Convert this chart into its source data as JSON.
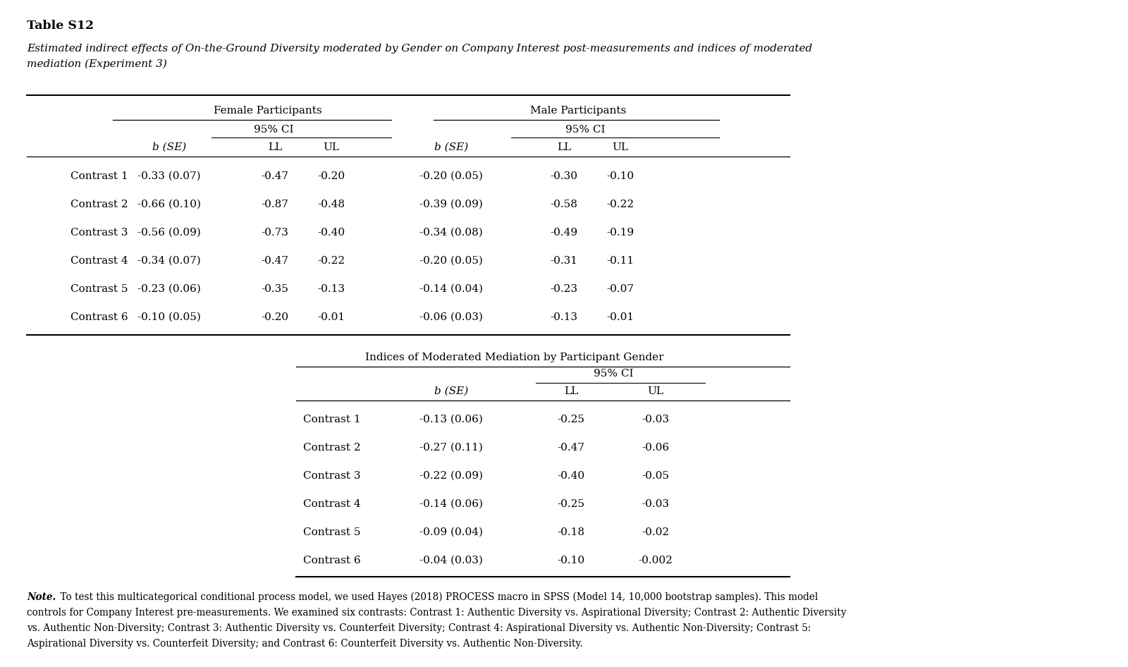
{
  "title": "Table S12",
  "subtitle_line1": "Estimated indirect effects of On-the-Ground Diversity moderated by Gender on Company Interest post-measurements and indices of moderated",
  "subtitle_line2": "mediation (Experiment 3)",
  "female_header": "Female Participants",
  "male_header": "Male Participants",
  "ci_header": "95% CI",
  "contrasts": [
    "Contrast 1",
    "Contrast 2",
    "Contrast 3",
    "Contrast 4",
    "Contrast 5",
    "Contrast 6"
  ],
  "female_data": [
    [
      "-0.33 (0.07)",
      "-0.47",
      "-0.20"
    ],
    [
      "-0.66 (0.10)",
      "-0.87",
      "-0.48"
    ],
    [
      "-0.56 (0.09)",
      "-0.73",
      "-0.40"
    ],
    [
      "-0.34 (0.07)",
      "-0.47",
      "-0.22"
    ],
    [
      "-0.23 (0.06)",
      "-0.35",
      "-0.13"
    ],
    [
      "-0.10 (0.05)",
      "-0.20",
      "-0.01"
    ]
  ],
  "male_data": [
    [
      "-0.20 (0.05)",
      "-0.30",
      "-0.10"
    ],
    [
      "-0.39 (0.09)",
      "-0.58",
      "-0.22"
    ],
    [
      "-0.34 (0.08)",
      "-0.49",
      "-0.19"
    ],
    [
      "-0.20 (0.05)",
      "-0.31",
      "-0.11"
    ],
    [
      "-0.14 (0.04)",
      "-0.23",
      "-0.07"
    ],
    [
      "-0.06 (0.03)",
      "-0.13",
      "-0.01"
    ]
  ],
  "section2_title": "Indices of Moderated Mediation by Participant Gender",
  "section2_data": [
    [
      "-0.13 (0.06)",
      "-0.25",
      "-0.03"
    ],
    [
      "-0.27 (0.11)",
      "-0.47",
      "-0.06"
    ],
    [
      "-0.22 (0.09)",
      "-0.40",
      "-0.05"
    ],
    [
      "-0.14 (0.06)",
      "-0.25",
      "-0.03"
    ],
    [
      "-0.09 (0.04)",
      "-0.18",
      "-0.02"
    ],
    [
      "-0.04 (0.03)",
      "-0.10",
      "-0.002"
    ]
  ],
  "note_italic": "Note.",
  "note_rest": " To test this multicategorical conditional process model, we used Hayes (2018) PROCESS macro in SPSS (Model 14, 10,000 bootstrap samples). This model controls for Company Interest pre-measurements. We examined six contrasts: Contrast 1: Authentic Diversity vs. Aspirational Diversity; Contrast 2: Authentic Diversity vs. Authentic Non-Diversity; Contrast 3: Authentic Diversity vs. Counterfeit Diversity; Contrast 4: Aspirational Diversity vs. Authentic Non-Diversity; Contrast 5: Aspirational Diversity vs. Counterfeit Diversity; and Contrast 6: Counterfeit Diversity vs. Authentic Non-Diversity.",
  "bg_color": "#ffffff",
  "text_color": "#000000",
  "font_size": 11.0,
  "note_font_size": 9.8,
  "title_font_size": 12.5
}
